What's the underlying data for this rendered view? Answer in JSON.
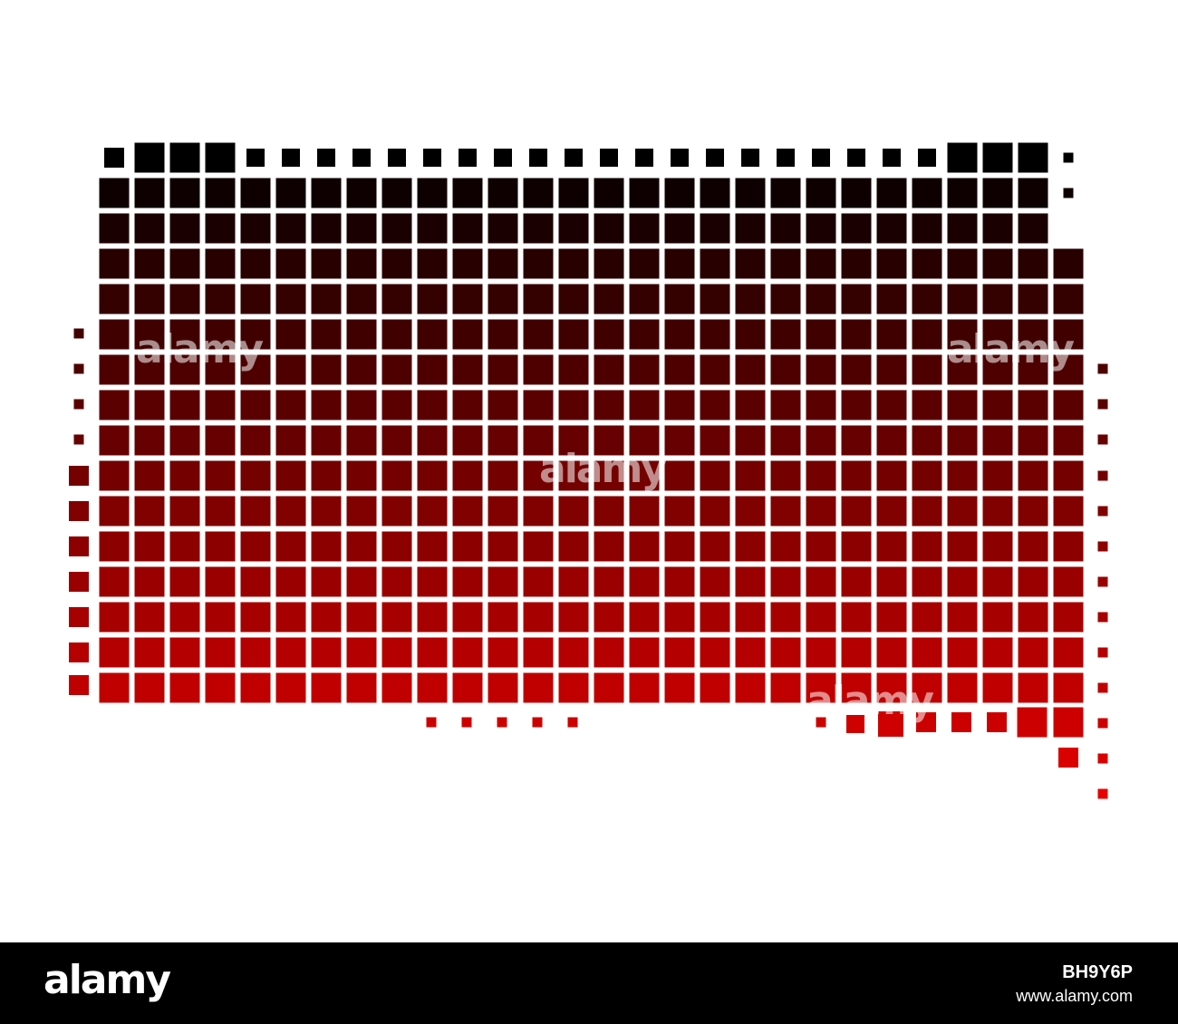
{
  "map": {
    "subject": "dotted map made of square tiles",
    "gradient_top": "#000000",
    "gradient_bottom": "#e80000"
  },
  "watermark": {
    "text": "alamy"
  },
  "footer": {
    "logo": "alamy",
    "image_code": "BH9Y6P",
    "site": "www.alamy.com"
  }
}
